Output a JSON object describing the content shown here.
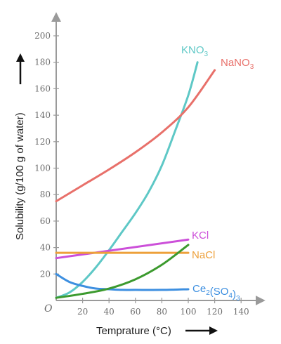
{
  "chart_data": {
    "type": "line",
    "xlabel": "Temprature (°C)",
    "ylabel": "Solubility (g/100 g of water)",
    "origin_label": "O",
    "xlim": [
      0,
      150
    ],
    "ylim": [
      0,
      210
    ],
    "xticks": [
      20,
      40,
      60,
      80,
      100,
      120,
      140
    ],
    "yticks": [
      20,
      40,
      60,
      80,
      100,
      120,
      140,
      160,
      180,
      200
    ],
    "grid": false,
    "legend": "inline labels at curve ends",
    "series": [
      {
        "name": "KNO3",
        "label_main": "KNO",
        "label_sub": "3",
        "color": "#5ec8c6",
        "x": [
          0,
          10,
          20,
          30,
          40,
          50,
          60,
          70,
          80,
          90,
          100,
          107
        ],
        "y": [
          2,
          6,
          14,
          25,
          38,
          52,
          66,
          82,
          102,
          128,
          155,
          180
        ]
      },
      {
        "name": "NaNO3",
        "label_main": "NaNO",
        "label_sub": "3",
        "color": "#e8706a",
        "x": [
          0,
          20,
          40,
          60,
          80,
          100,
          120
        ],
        "y": [
          75,
          87,
          99,
          112,
          127,
          146,
          174
        ]
      },
      {
        "name": "KCl",
        "label_main": "KCl",
        "color": "#cc4fd9",
        "x": [
          0,
          100
        ],
        "y": [
          32,
          46
        ]
      },
      {
        "name": "NaCl",
        "label_main": "NaCl",
        "color": "#eda03a",
        "x": [
          0,
          100
        ],
        "y": [
          36,
          36
        ]
      },
      {
        "name": "Ce2(SO4)3",
        "label_main": "Ce",
        "label_sub": "2",
        "label_mid": "(SO",
        "label_sub2": "4",
        "label_end": ")",
        "label_sub3": "3",
        "color": "#3d8fe0",
        "x": [
          0,
          10,
          20,
          30,
          40,
          50,
          60,
          80,
          100
        ],
        "y": [
          20,
          14,
          11,
          9,
          8.5,
          8,
          8,
          8,
          8.5
        ]
      },
      {
        "name": "green curve",
        "color": "#3c9a2e",
        "x": [
          0,
          20,
          40,
          60,
          80,
          100
        ],
        "y": [
          2,
          5,
          9,
          16,
          27,
          42
        ]
      }
    ]
  }
}
